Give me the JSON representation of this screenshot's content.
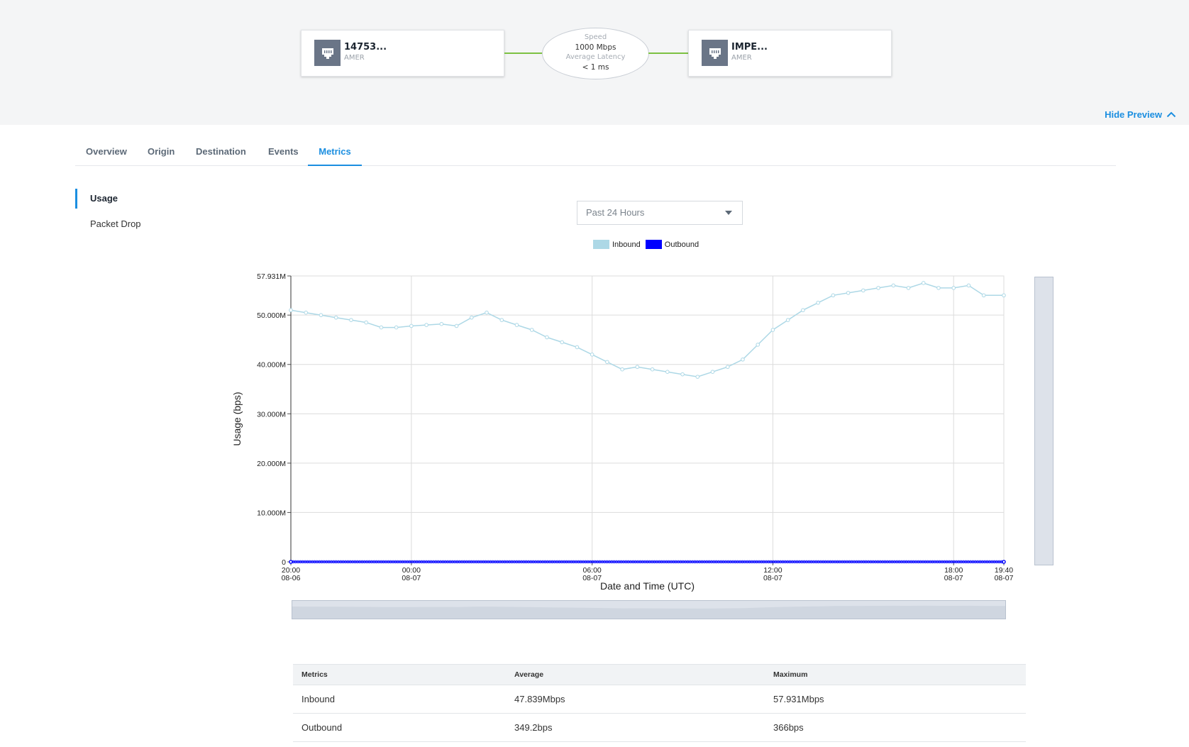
{
  "preview": {
    "origin": {
      "name": "14753...",
      "region": "AMER"
    },
    "destination": {
      "name": "IMPE...",
      "region": "AMER"
    },
    "link": {
      "speed_label": "Speed",
      "speed_value": "1000 Mbps",
      "latency_label": "Average Latency",
      "latency_value": "< 1 ms"
    },
    "hide_preview_label": "Hide Preview",
    "colors": {
      "link_line": "#7cc142",
      "node_icon_bg": "#6a7587"
    },
    "icons": {
      "node": "ethernet-port-icon",
      "hide": "chevron-up-icon"
    }
  },
  "tabs": [
    {
      "label": "Overview",
      "active": false
    },
    {
      "label": "Origin",
      "active": false
    },
    {
      "label": "Destination",
      "active": false
    },
    {
      "label": "Events",
      "active": false
    },
    {
      "label": "Metrics",
      "active": true
    }
  ],
  "sidenav": [
    {
      "label": "Usage",
      "active": true
    },
    {
      "label": "Packet Drop",
      "active": false
    }
  ],
  "range": {
    "selected": "Past 24 Hours"
  },
  "chart_data": {
    "type": "line",
    "title": "",
    "xlabel": "Date and Time (UTC)",
    "ylabel": "Usage (bps)",
    "ylim": [
      0,
      57931000
    ],
    "yticks": [
      {
        "value": 0,
        "label": "0"
      },
      {
        "value": 10000000,
        "label": "10.000M"
      },
      {
        "value": 20000000,
        "label": "20.000M"
      },
      {
        "value": 30000000,
        "label": "30.000M"
      },
      {
        "value": 40000000,
        "label": "40.000M"
      },
      {
        "value": 50000000,
        "label": "50.000M"
      },
      {
        "value": 57931000,
        "label": "57.931M"
      }
    ],
    "xlim_hours": [
      0,
      23.667
    ],
    "xticks": [
      {
        "hours": 0,
        "time": "20:00",
        "date": "08-06"
      },
      {
        "hours": 4,
        "time": "00:00",
        "date": "08-07"
      },
      {
        "hours": 10,
        "time": "06:00",
        "date": "08-07"
      },
      {
        "hours": 16,
        "time": "12:00",
        "date": "08-07"
      },
      {
        "hours": 22,
        "time": "18:00",
        "date": "08-07"
      },
      {
        "hours": 23.667,
        "time": "19:40",
        "date": "08-07"
      }
    ],
    "grid": true,
    "legend_position": "top",
    "series": [
      {
        "name": "Inbound",
        "color": "#add8e6",
        "x_hours": [
          0,
          0.5,
          1,
          1.5,
          2,
          2.5,
          3,
          3.5,
          4,
          4.5,
          5,
          5.5,
          6,
          6.5,
          7,
          7.5,
          8,
          8.5,
          9,
          9.5,
          10,
          10.5,
          11,
          11.5,
          12,
          12.5,
          13,
          13.5,
          14,
          14.5,
          15,
          15.5,
          16,
          16.5,
          17,
          17.5,
          18,
          18.5,
          19,
          19.5,
          20,
          20.5,
          21,
          21.5,
          22,
          22.5,
          23,
          23.667
        ],
        "values": [
          51000000,
          50500000,
          50000000,
          49500000,
          49000000,
          48500000,
          47500000,
          47500000,
          47800000,
          48000000,
          48200000,
          47800000,
          49500000,
          50500000,
          49000000,
          48000000,
          47000000,
          45500000,
          44500000,
          43500000,
          42000000,
          40500000,
          39000000,
          39500000,
          39000000,
          38500000,
          38000000,
          37500000,
          38500000,
          39500000,
          41000000,
          44000000,
          47000000,
          49000000,
          51000000,
          52500000,
          54000000,
          54500000,
          55000000,
          55500000,
          56000000,
          55500000,
          56500000,
          55500000,
          55500000,
          56000000,
          54000000,
          54000000
        ]
      },
      {
        "name": "Outbound",
        "color": "#0000ff",
        "x_hours": [
          0,
          23.667
        ],
        "values": [
          349.2,
          349.2
        ]
      }
    ]
  },
  "metrics_table": {
    "headers": [
      "Metrics",
      "Average",
      "Maximum"
    ],
    "rows": [
      [
        "Inbound",
        "47.839Mbps",
        "57.931Mbps"
      ],
      [
        "Outbound",
        "349.2bps",
        "366bps"
      ]
    ]
  }
}
